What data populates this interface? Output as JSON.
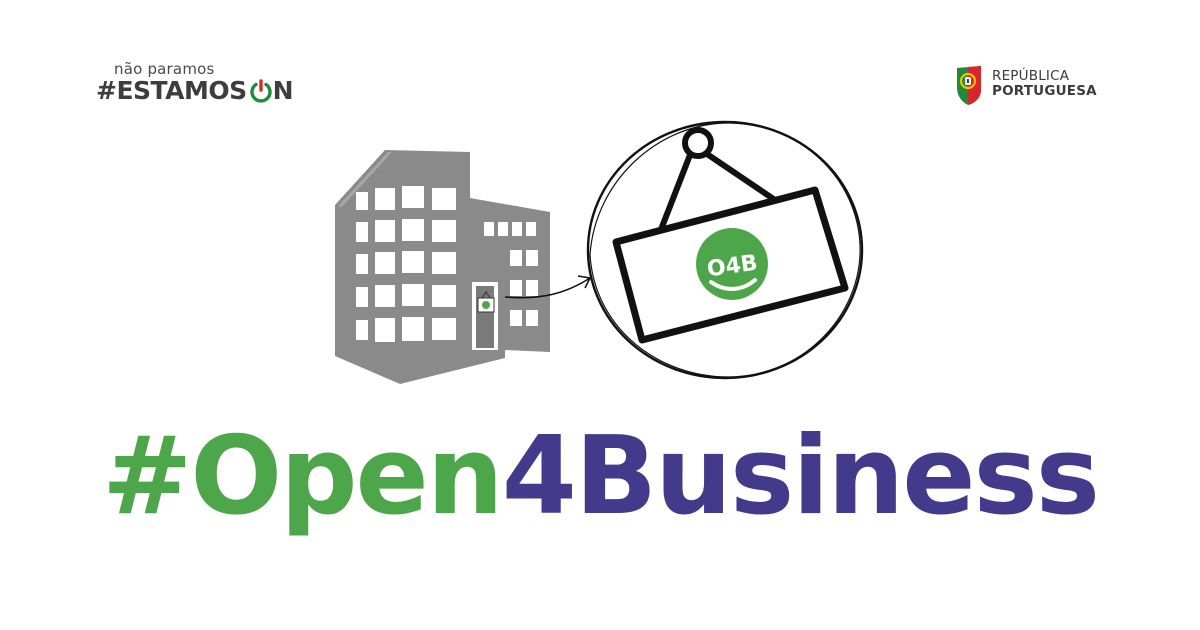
{
  "campaign_logo": {
    "tagline": "não paramos",
    "hashtag": "#ESTAMOS",
    "on_text": "N",
    "icon": "power-icon",
    "accent_green": "#1f8a3b",
    "accent_red": "#d9262b"
  },
  "government_logo": {
    "line1": "REPÚBLICA",
    "line2": "PORTUGUESA",
    "icon": "portugal-coat-of-arms-icon"
  },
  "illustration": {
    "sign_text": "O4B",
    "building_icon": "office-building-icon",
    "arrow_icon": "curved-arrow-icon",
    "sign_icon": "hanging-sign-icon"
  },
  "headline": {
    "part1": "#Open",
    "part2": "4Business",
    "color1": "#4ea64a",
    "color2": "#433a8c"
  }
}
